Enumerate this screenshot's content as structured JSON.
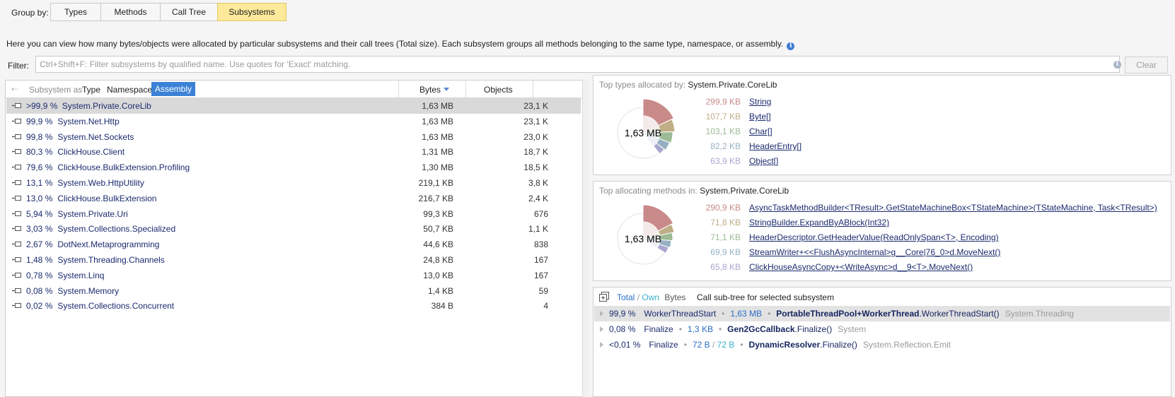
{
  "group_by": {
    "label": "Group by:",
    "options": [
      "Types",
      "Methods",
      "Call Tree",
      "Subsystems"
    ],
    "active": "Subsystems"
  },
  "description": "Here you can view how many bytes/objects were allocated by particular subsystems and their call trees (Total size). Each subsystem groups all methods belonging to the same type, namespace, or assembly.",
  "filter": {
    "label": "Filter:",
    "placeholder": "Ctrl+Shift+F: Filter subsystems by qualified name. Use quotes for 'Exact' matching.",
    "value": "",
    "clear_label": "Clear"
  },
  "subsystem_table": {
    "subsystem_as_label": "Subsystem as",
    "modes": [
      "Type",
      "Namespace",
      "Assembly"
    ],
    "active_mode": "Assembly",
    "columns": {
      "bytes": "Bytes",
      "objects": "Objects"
    },
    "rows": [
      {
        "pct": ">99,9 %",
        "name": "System.Private.CoreLib",
        "bytes": "1,63 MB",
        "objects": "23,1 K",
        "selected": true
      },
      {
        "pct": "99,9 %",
        "name": "System.Net.Http",
        "bytes": "1,63 MB",
        "objects": "23,1 K"
      },
      {
        "pct": "99,8 %",
        "name": "System.Net.Sockets",
        "bytes": "1,63 MB",
        "objects": "23,0 K"
      },
      {
        "pct": "80,3 %",
        "name": "ClickHouse.Client",
        "bytes": "1,31 MB",
        "objects": "18,7 K"
      },
      {
        "pct": "79,6 %",
        "name": "ClickHouse.BulkExtension.Profiling",
        "bytes": "1,30 MB",
        "objects": "18,5 K"
      },
      {
        "pct": "13,1 %",
        "name": "System.Web.HttpUtility",
        "bytes": "219,1 KB",
        "objects": "3,8 K"
      },
      {
        "pct": "13,0 %",
        "name": "ClickHouse.BulkExtension",
        "bytes": "216,7 KB",
        "objects": "2,4 K"
      },
      {
        "pct": "5,94 %",
        "name": "System.Private.Uri",
        "bytes": "99,3 KB",
        "objects": "676"
      },
      {
        "pct": "3,03 %",
        "name": "System.Collections.Specialized",
        "bytes": "50,7 KB",
        "objects": "1,1 K"
      },
      {
        "pct": "2,67 %",
        "name": "DotNext.Metaprogramming",
        "bytes": "44,6 KB",
        "objects": "838"
      },
      {
        "pct": "1,48 %",
        "name": "System.Threading.Channels",
        "bytes": "24,8 KB",
        "objects": "167"
      },
      {
        "pct": "0,78 %",
        "name": "System.Linq",
        "bytes": "13,0 KB",
        "objects": "167"
      },
      {
        "pct": "0,08 %",
        "name": "System.Memory",
        "bytes": "1,4 KB",
        "objects": "59"
      },
      {
        "pct": "0,02 %",
        "name": "System.Collections.Concurrent",
        "bytes": "384 B",
        "objects": "4"
      }
    ]
  },
  "top_types": {
    "title_prefix": "Top types allocated by:",
    "subsystem": "System.Private.CoreLib",
    "total": "1,63 MB",
    "items": [
      {
        "value": "299,9 KB",
        "name": "String",
        "color": "#c98a8a"
      },
      {
        "value": "107,7 KB",
        "name": "Byte[]",
        "color": "#bfae86"
      },
      {
        "value": "103,1 KB",
        "name": "Char[]",
        "color": "#9dbb96"
      },
      {
        "value": "82,2 KB",
        "name": "HeaderEntry[]",
        "color": "#95b0c2"
      },
      {
        "value": "63,9 KB",
        "name": "Object[]",
        "color": "#a9a6d0"
      }
    ]
  },
  "top_methods": {
    "title_prefix": "Top allocating methods in:",
    "subsystem": "System.Private.CoreLib",
    "total": "1,63 MB",
    "items": [
      {
        "value": "290,9 KB",
        "name": "AsyncTaskMethodBuilder<TResult>.GetStateMachineBox<TStateMachine>(TStateMachine, Task<TResult>)",
        "color": "#c98a8a"
      },
      {
        "value": "71,8 KB",
        "name": "StringBuilder.ExpandByABlock(Int32)",
        "color": "#bfae86"
      },
      {
        "value": "71,1 KB",
        "name": "HeaderDescriptor.GetHeaderValue(ReadOnlySpan<T>, Encoding)",
        "color": "#9dbb96"
      },
      {
        "value": "69,9 KB",
        "name": "StreamWriter+<<FlushAsyncInternal>g__Core|76_0>d.MoveNext()",
        "color": "#95b0c2"
      },
      {
        "value": "65,8 KB",
        "name": "ClickHouseAsyncCopy+<WriteAsync>d__9<T>.MoveNext()",
        "color": "#a9a6d0"
      }
    ]
  },
  "call_subtree": {
    "total_label": "Total",
    "own_label": "Own",
    "bytes_label": "Bytes",
    "title": "Call sub-tree for selected subsystem",
    "rows": [
      {
        "pct": "99,9 %",
        "method": "WorkerThreadStart",
        "size": "1,63 MB",
        "own": "",
        "type": "PortableThreadPool+WorkerThread",
        "call": ".WorkerThreadStart()",
        "ns": "System.Threading",
        "selected": true
      },
      {
        "pct": "0,08 %",
        "method": "Finalize",
        "size": "1,3 KB",
        "own": "",
        "type": "Gen2GcCallback",
        "call": ".Finalize()",
        "ns": "System"
      },
      {
        "pct": "<0,01 %",
        "method": "Finalize",
        "size": "72 B",
        "own": "72 B",
        "type": "DynamicResolver",
        "call": ".Finalize()",
        "ns": "System.Reflection.Emit"
      }
    ]
  },
  "colors": {
    "active_tab": "#fde99a",
    "accent_blue": "#3b82d6",
    "name_text": "#1b2b6e",
    "own_teal": "#3ab0c8"
  }
}
